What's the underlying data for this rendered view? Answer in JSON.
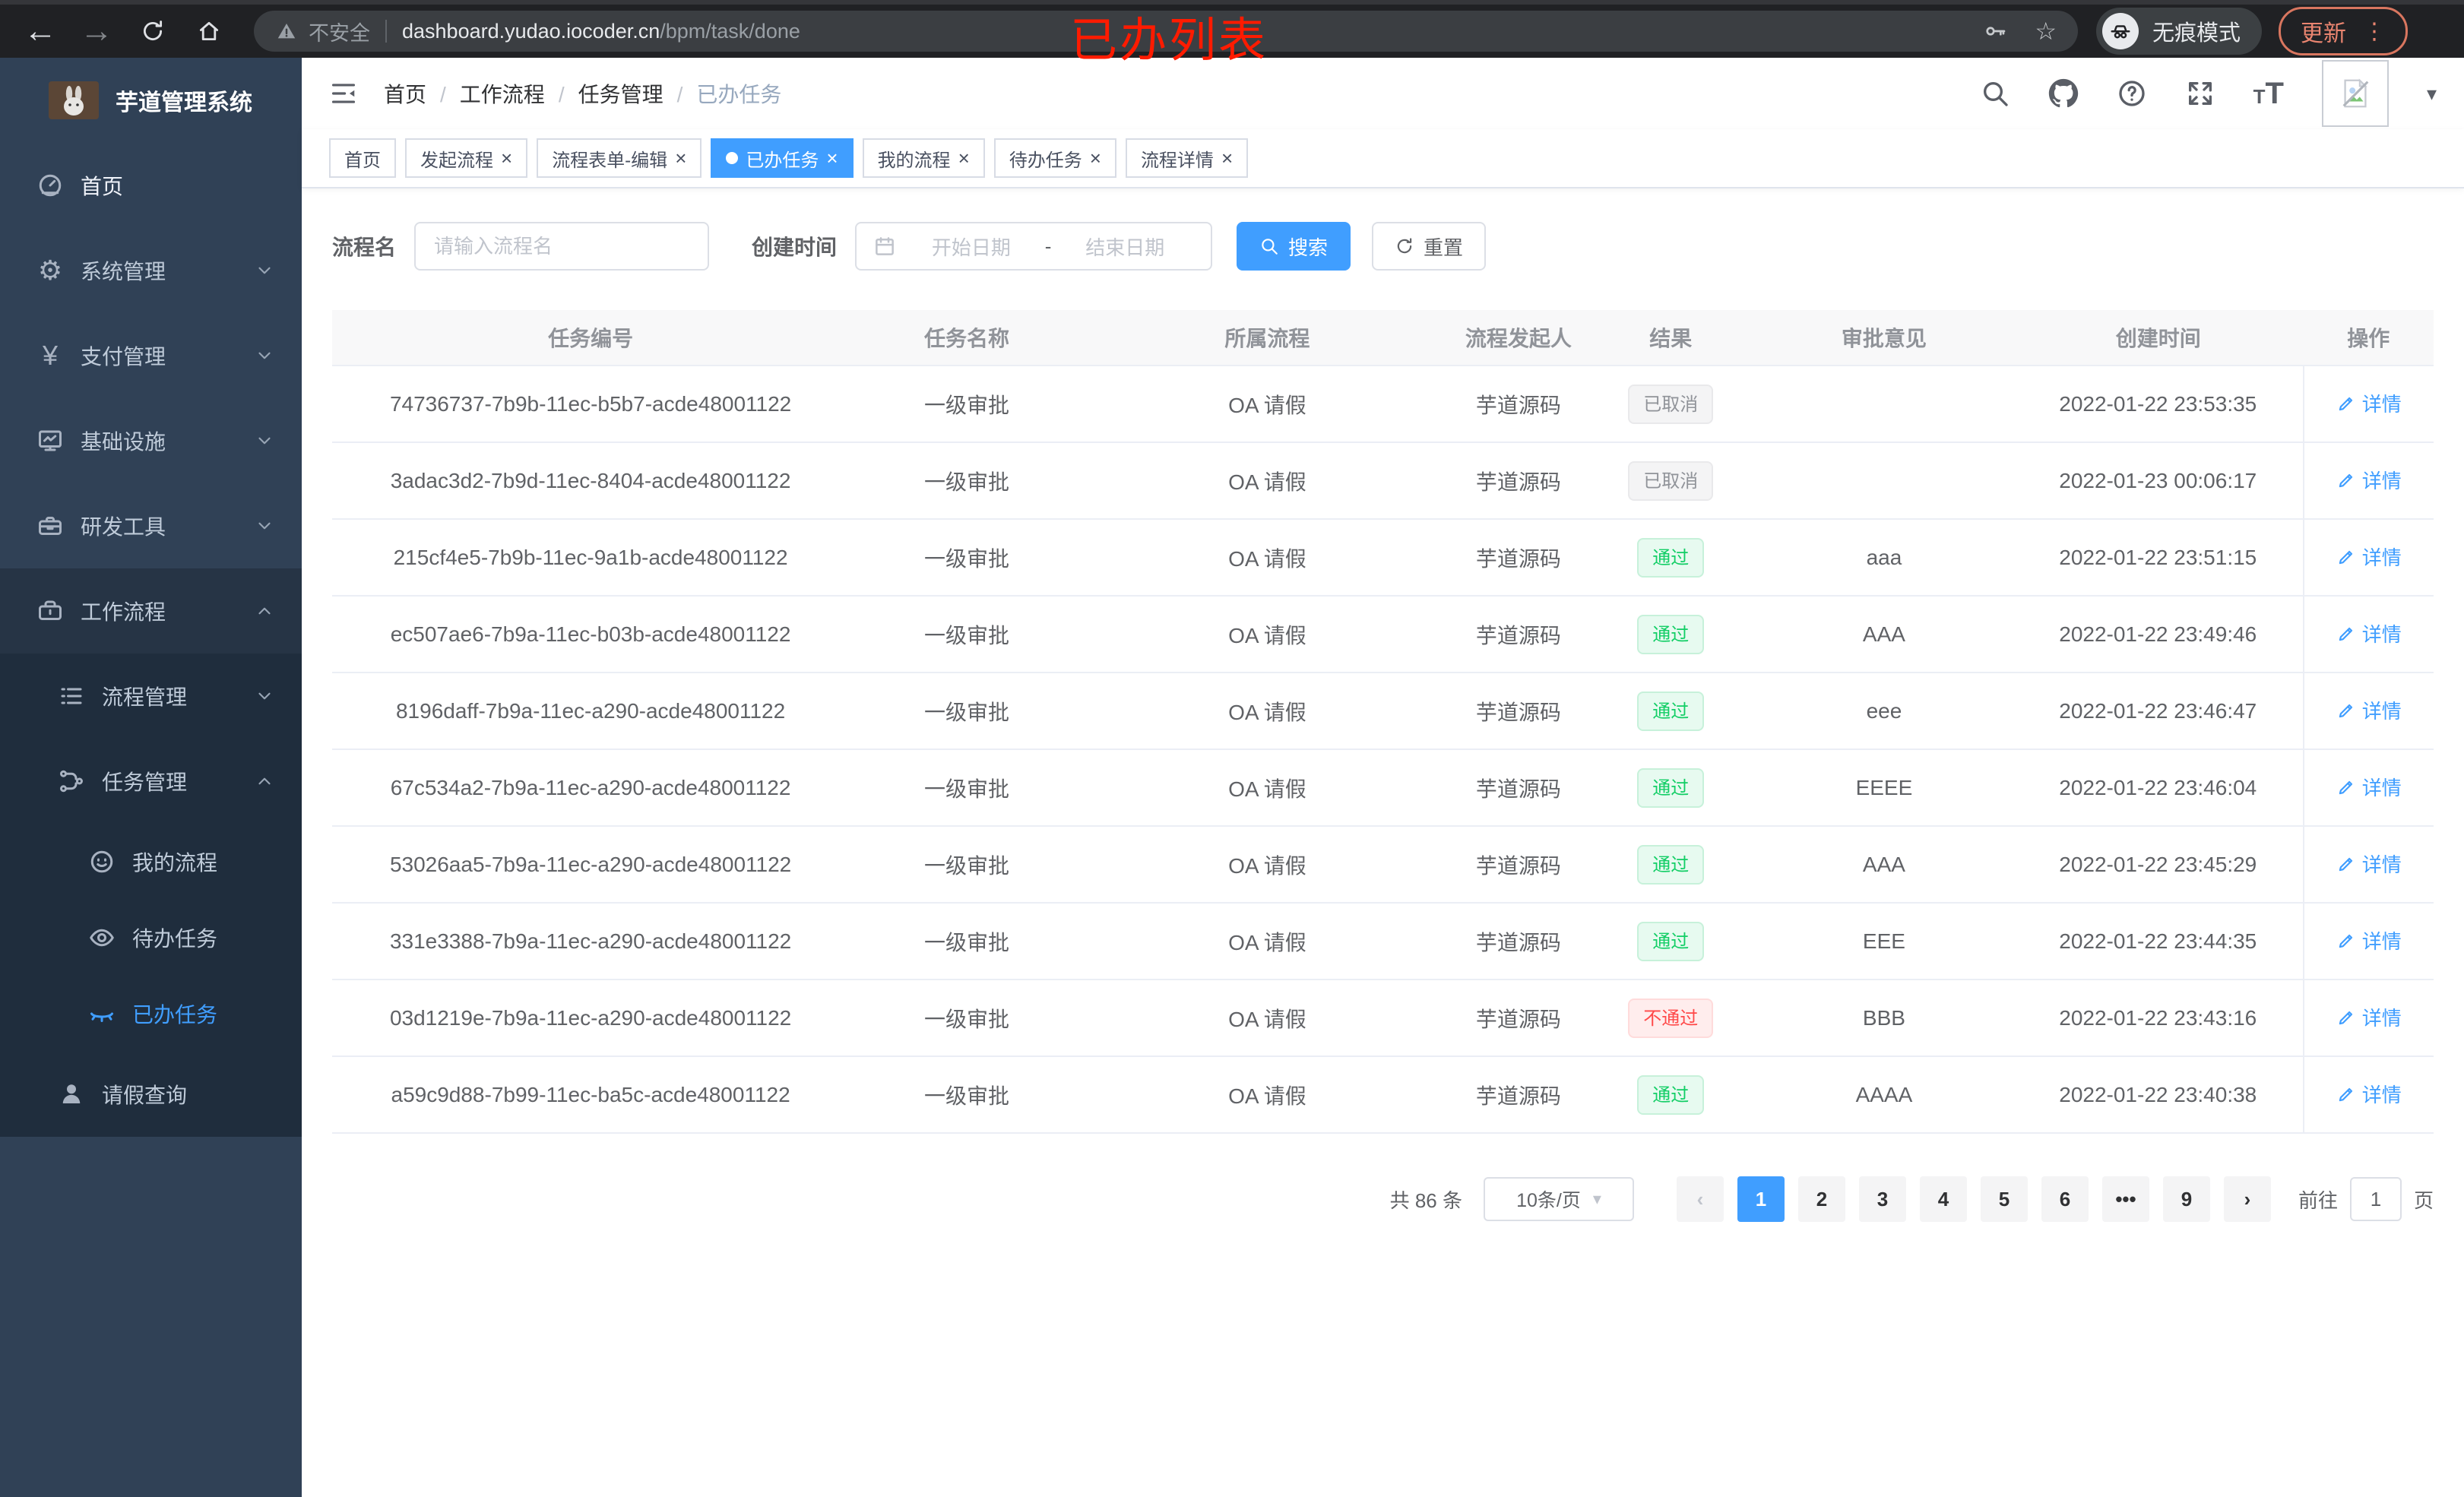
{
  "browser": {
    "security_label": "不安全",
    "url_host": "dashboard.yudao.iocoder.cn",
    "url_path": "/bpm/task/done",
    "incognito_label": "无痕模式",
    "update_label": "更新"
  },
  "icons": {
    "back": "←",
    "forward": "→",
    "star": "☆",
    "more_vertical": "⋮",
    "close": "×",
    "caret_down": "▾",
    "chevron_left": "‹",
    "chevron_right": "›",
    "font_size_small": "T",
    "font_size_big": "T"
  },
  "annotation": {
    "title": "已办列表",
    "color": "#ff1b00"
  },
  "sidebar": {
    "logo_title": "芋道管理系统",
    "items": [
      {
        "label": "首页",
        "icon": "dashboard",
        "cls": "lvl1 bright"
      },
      {
        "label": "系统管理",
        "icon": "gear",
        "cls": "lvl1",
        "chev": "down"
      },
      {
        "label": "支付管理",
        "icon": "yen",
        "cls": "lvl1",
        "chev": "down"
      },
      {
        "label": "基础设施",
        "icon": "monitor",
        "cls": "lvl1",
        "chev": "down"
      },
      {
        "label": "研发工具",
        "icon": "toolbox",
        "cls": "lvl1",
        "chev": "down"
      },
      {
        "label": "工作流程",
        "icon": "briefcase",
        "cls": "lvl1 open",
        "chev": "up"
      },
      {
        "label": "流程管理",
        "icon": "tree",
        "cls": "lvl2 nested",
        "chev": "down"
      },
      {
        "label": "任务管理",
        "icon": "share",
        "cls": "lvl2 nested",
        "chev": "up"
      },
      {
        "label": "我的流程",
        "icon": "face",
        "cls": "lvl3 nested"
      },
      {
        "label": "待办任务",
        "icon": "eye",
        "cls": "lvl3 nested"
      },
      {
        "label": "已办任务",
        "icon": "eyeclosed",
        "cls": "lvl3 nested active"
      },
      {
        "label": "请假查询",
        "icon": "user",
        "cls": "lvl2 nested"
      }
    ]
  },
  "header": {
    "breadcrumb": [
      {
        "label": "首页"
      },
      {
        "label": "工作流程"
      },
      {
        "label": "任务管理"
      },
      {
        "label": "已办任务",
        "cls": "muted"
      }
    ]
  },
  "tabs": [
    {
      "label": "首页"
    },
    {
      "label": "发起流程",
      "closable": true
    },
    {
      "label": "流程表单-编辑",
      "closable": true
    },
    {
      "label": "已办任务",
      "closable": true,
      "cls": "active",
      "dot": true
    },
    {
      "label": "我的流程",
      "closable": true
    },
    {
      "label": "待办任务",
      "closable": true
    },
    {
      "label": "流程详情",
      "closable": true
    }
  ],
  "filters": {
    "name_label": "流程名",
    "name_placeholder": "请输入流程名",
    "date_label": "创建时间",
    "date_start_placeholder": "开始日期",
    "date_separator": "-",
    "date_end_placeholder": "结束日期",
    "search_label": "搜索",
    "reset_label": "重置"
  },
  "table": {
    "columns": [
      {
        "label": "任务编号"
      },
      {
        "label": "任务名称"
      },
      {
        "label": "所属流程"
      },
      {
        "label": "流程发起人"
      },
      {
        "label": "结果"
      },
      {
        "label": "审批意见"
      },
      {
        "label": "创建时间"
      },
      {
        "label": "操作"
      }
    ],
    "detail_label": "详情",
    "rows": [
      {
        "id": "74736737-7b9b-11ec-b5b7-acde48001122",
        "name": "一级审批",
        "flow": "OA 请假",
        "initiator": "芋道源码",
        "result": "已取消",
        "result_type": "info",
        "comment": "",
        "time": "2022-01-22 23:53:35"
      },
      {
        "id": "3adac3d2-7b9d-11ec-8404-acde48001122",
        "name": "一级审批",
        "flow": "OA 请假",
        "initiator": "芋道源码",
        "result": "已取消",
        "result_type": "info",
        "comment": "",
        "time": "2022-01-23 00:06:17"
      },
      {
        "id": "215cf4e5-7b9b-11ec-9a1b-acde48001122",
        "name": "一级审批",
        "flow": "OA 请假",
        "initiator": "芋道源码",
        "result": "通过",
        "result_type": "success",
        "comment": "aaa",
        "time": "2022-01-22 23:51:15"
      },
      {
        "id": "ec507ae6-7b9a-11ec-b03b-acde48001122",
        "name": "一级审批",
        "flow": "OA 请假",
        "initiator": "芋道源码",
        "result": "通过",
        "result_type": "success",
        "comment": "AAA",
        "time": "2022-01-22 23:49:46"
      },
      {
        "id": "8196daff-7b9a-11ec-a290-acde48001122",
        "name": "一级审批",
        "flow": "OA 请假",
        "initiator": "芋道源码",
        "result": "通过",
        "result_type": "success",
        "comment": "eee",
        "time": "2022-01-22 23:46:47"
      },
      {
        "id": "67c534a2-7b9a-11ec-a290-acde48001122",
        "name": "一级审批",
        "flow": "OA 请假",
        "initiator": "芋道源码",
        "result": "通过",
        "result_type": "success",
        "comment": "EEEE",
        "time": "2022-01-22 23:46:04"
      },
      {
        "id": "53026aa5-7b9a-11ec-a290-acde48001122",
        "name": "一级审批",
        "flow": "OA 请假",
        "initiator": "芋道源码",
        "result": "通过",
        "result_type": "success",
        "comment": "AAA",
        "time": "2022-01-22 23:45:29"
      },
      {
        "id": "331e3388-7b9a-11ec-a290-acde48001122",
        "name": "一级审批",
        "flow": "OA 请假",
        "initiator": "芋道源码",
        "result": "通过",
        "result_type": "success",
        "comment": "EEE",
        "time": "2022-01-22 23:44:35"
      },
      {
        "id": "03d1219e-7b9a-11ec-a290-acde48001122",
        "name": "一级审批",
        "flow": "OA 请假",
        "initiator": "芋道源码",
        "result": "不通过",
        "result_type": "danger",
        "comment": "BBB",
        "time": "2022-01-22 23:43:16"
      },
      {
        "id": "a59c9d88-7b99-11ec-ba5c-acde48001122",
        "name": "一级审批",
        "flow": "OA 请假",
        "initiator": "芋道源码",
        "result": "通过",
        "result_type": "success",
        "comment": "AAAA",
        "time": "2022-01-22 23:40:38"
      }
    ]
  },
  "pagination": {
    "total_label": "共 86 条",
    "page_size": "10条/页",
    "pages": [
      {
        "label": "1",
        "cls": "active"
      },
      {
        "label": "2"
      },
      {
        "label": "3"
      },
      {
        "label": "4"
      },
      {
        "label": "5"
      },
      {
        "label": "6"
      },
      {
        "label": "•••"
      },
      {
        "label": "9"
      }
    ],
    "goto_label": "前往",
    "goto_value": "1",
    "goto_unit": "页"
  },
  "colors": {
    "accent": "#409eff",
    "success": "#13ce66",
    "danger": "#ff4949",
    "info": "#909399",
    "sidebar": "#304156"
  }
}
